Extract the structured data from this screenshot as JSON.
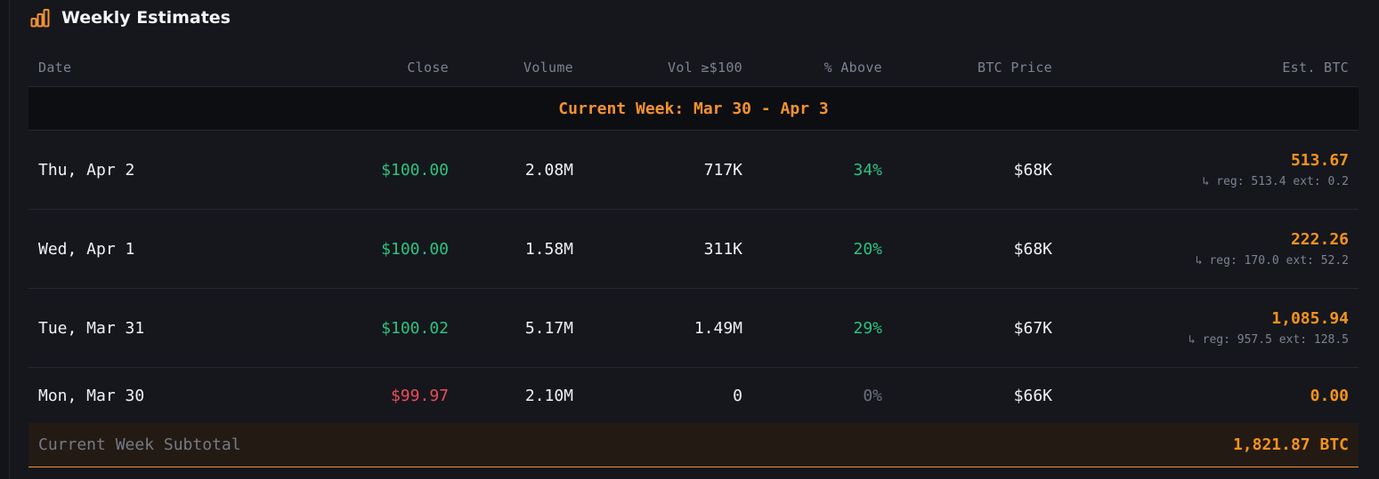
{
  "header": {
    "title": "Weekly Estimates",
    "icon": "bar-chart-icon",
    "accent": "#f5922f"
  },
  "columns": {
    "date": "Date",
    "close": "Close",
    "volume": "Volume",
    "vol100": "Vol ≥$100",
    "above": "% Above",
    "btc_price": "BTC Price",
    "est_btc": "Est. BTC"
  },
  "week": {
    "label": "Current Week: Mar 30 - Apr 3"
  },
  "rows": [
    {
      "date": "Thu, Apr 2",
      "close": "$100.00",
      "volume": "2.08M",
      "vol100": "717K",
      "above": "34%",
      "btc_price": "$68K",
      "est": "513.67",
      "detail": "↳ reg: 513.4 ext: 0.2"
    },
    {
      "date": "Wed, Apr 1",
      "close": "$100.00",
      "volume": "1.58M",
      "vol100": "311K",
      "above": "20%",
      "btc_price": "$68K",
      "est": "222.26",
      "detail": "↳ reg: 170.0 ext: 52.2"
    },
    {
      "date": "Tue, Mar 31",
      "close": "$100.02",
      "volume": "5.17M",
      "vol100": "1.49M",
      "above": "29%",
      "btc_price": "$67K",
      "est": "1,085.94",
      "detail": "↳ reg: 957.5 ext: 128.5"
    },
    {
      "date": "Mon, Mar 30",
      "close": "$99.97",
      "volume": "2.10M",
      "vol100": "0",
      "above": "0%",
      "btc_price": "$66K",
      "est": "0.00"
    }
  ],
  "subtotal": {
    "label": "Current Week Subtotal",
    "value": "1,821.87 BTC"
  },
  "colors": {
    "positive": "#2ec27e",
    "negative": "#ef4b5a",
    "accent": "#f7931a",
    "background": "#15171d"
  }
}
